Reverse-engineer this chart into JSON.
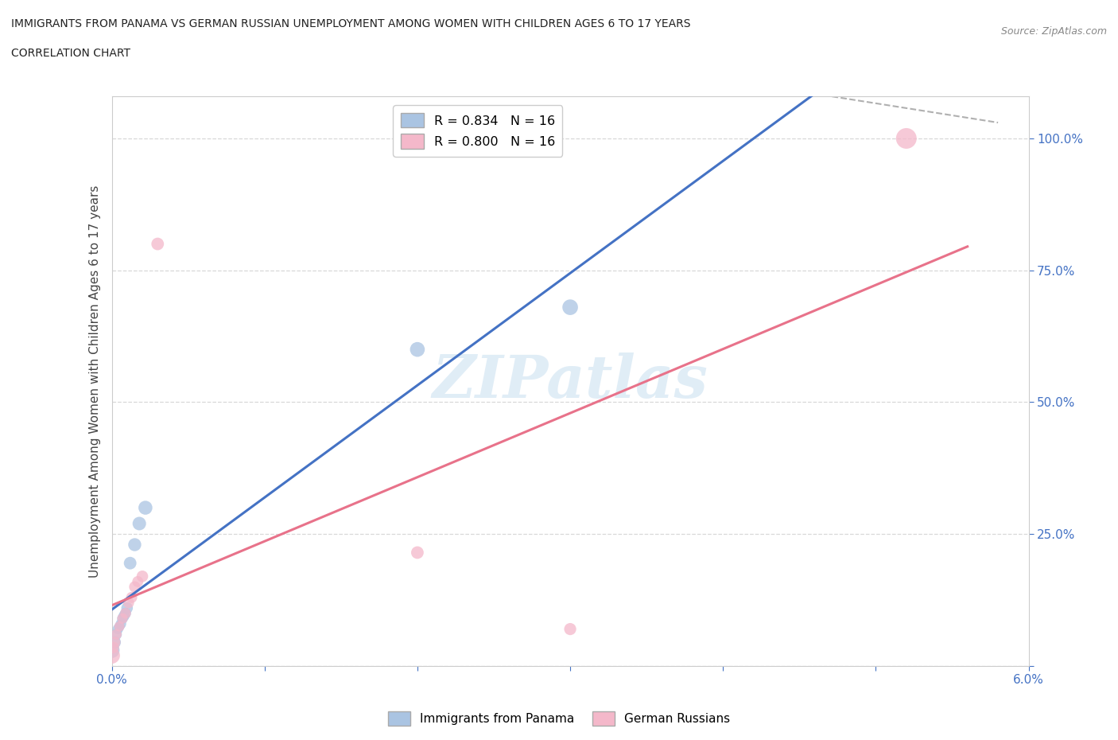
{
  "title_line1": "IMMIGRANTS FROM PANAMA VS GERMAN RUSSIAN UNEMPLOYMENT AMONG WOMEN WITH CHILDREN AGES 6 TO 17 YEARS",
  "title_line2": "CORRELATION CHART",
  "source": "Source: ZipAtlas.com",
  "ylabel": "Unemployment Among Women with Children Ages 6 to 17 years",
  "xlim": [
    0.0,
    0.06
  ],
  "ylim": [
    0.0,
    1.08
  ],
  "watermark": "ZIPatlas",
  "legend_r1": "R = 0.834   N = 16",
  "legend_r2": "R = 0.800   N = 16",
  "series1_name": "Immigrants from Panama",
  "series1_color": "#aac4e2",
  "series1_line_color": "#4472c4",
  "series2_name": "German Russians",
  "series2_color": "#f4b8ca",
  "series2_line_color": "#e8728a",
  "panama_x": [
    0.0,
    0.0002,
    0.0003,
    0.0004,
    0.0005,
    0.0006,
    0.0007,
    0.0008,
    0.0009,
    0.001,
    0.0012,
    0.0015,
    0.0018,
    0.0022,
    0.02,
    0.03
  ],
  "panama_y": [
    0.03,
    0.045,
    0.06,
    0.07,
    0.075,
    0.08,
    0.09,
    0.095,
    0.1,
    0.11,
    0.195,
    0.23,
    0.27,
    0.3,
    0.6,
    0.68
  ],
  "panama_s": [
    200,
    120,
    100,
    90,
    85,
    90,
    95,
    100,
    100,
    110,
    130,
    140,
    150,
    160,
    180,
    200
  ],
  "german_x": [
    0.0,
    0.0001,
    0.0002,
    0.0003,
    0.0005,
    0.0007,
    0.0009,
    0.0011,
    0.0013,
    0.0015,
    0.0017,
    0.002,
    0.003,
    0.02,
    0.03,
    0.052
  ],
  "german_y": [
    0.02,
    0.035,
    0.045,
    0.06,
    0.075,
    0.09,
    0.1,
    0.12,
    0.13,
    0.15,
    0.16,
    0.17,
    0.8,
    0.215,
    0.07,
    1.0
  ],
  "german_s": [
    220,
    110,
    100,
    90,
    85,
    90,
    95,
    100,
    100,
    105,
    100,
    110,
    130,
    130,
    120,
    350
  ],
  "background_color": "#ffffff",
  "grid_color": "#d8d8d8",
  "axis_color": "#cccccc",
  "tick_color": "#4472c4"
}
